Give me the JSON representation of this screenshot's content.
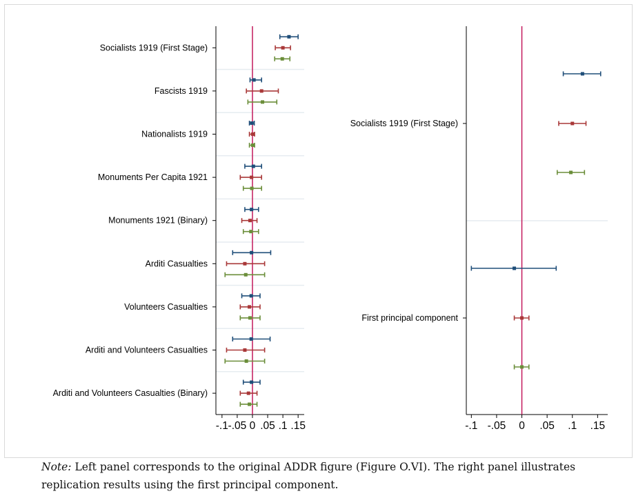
{
  "note": {
    "label": "Note:",
    "text": "Left panel corresponds to the original ADDR figure (Figure O.VI). The right panel illustrates replication results using the first principal component."
  },
  "colors": {
    "series_blue": "#1f4e79",
    "series_red": "#a93838",
    "series_green": "#6b8e3a",
    "zero_line": "#c2185b",
    "axis": "#000000",
    "separator": "#e6ecf0"
  },
  "chart_data": [
    {
      "type": "coefficient-plot",
      "categories": [
        "Socialists 1919 (First Stage)",
        "Fascists 1919",
        "Nationalists 1919",
        "Monuments Per Capita 1921",
        "Monuments 1921 (Binary)",
        "Arditi Casualties",
        "Volunteers Casualties",
        "Arditi and Volunteers Casualties",
        "Arditi and Volunteers Casualties (Binary)"
      ],
      "xlim": [
        -0.12,
        0.17
      ],
      "xticks": [
        "-.1",
        "-.05",
        "0",
        ".05",
        ".1",
        ".15"
      ],
      "xtick_values": [
        -0.1,
        -0.05,
        0,
        0.05,
        0.1,
        0.15
      ],
      "reference_line": 0,
      "series": [
        {
          "color": "#1f4e79",
          "estimates": [
            0.12,
            0.005,
            -0.002,
            0.003,
            -0.003,
            -0.003,
            -0.004,
            -0.004,
            -0.003
          ],
          "ci_low": [
            0.09,
            -0.008,
            -0.01,
            -0.025,
            -0.025,
            -0.065,
            -0.035,
            -0.065,
            -0.03
          ],
          "ci_high": [
            0.15,
            0.03,
            0.006,
            0.03,
            0.02,
            0.06,
            0.025,
            0.058,
            0.025
          ]
        },
        {
          "color": "#a93838",
          "estimates": [
            0.1,
            0.03,
            0.001,
            -0.003,
            -0.008,
            -0.025,
            -0.01,
            -0.025,
            -0.013
          ],
          "ci_low": [
            0.075,
            -0.02,
            -0.01,
            -0.04,
            -0.035,
            -0.085,
            -0.04,
            -0.085,
            -0.04
          ],
          "ci_high": [
            0.125,
            0.085,
            0.007,
            0.03,
            0.015,
            0.04,
            0.025,
            0.04,
            0.015
          ]
        },
        {
          "color": "#6b8e3a",
          "estimates": [
            0.098,
            0.033,
            0.001,
            -0.002,
            -0.005,
            -0.022,
            -0.008,
            -0.02,
            -0.01
          ],
          "ci_low": [
            0.073,
            -0.015,
            -0.01,
            -0.03,
            -0.03,
            -0.09,
            -0.04,
            -0.09,
            -0.04
          ],
          "ci_high": [
            0.123,
            0.08,
            0.007,
            0.03,
            0.02,
            0.04,
            0.025,
            0.04,
            0.015
          ]
        }
      ]
    },
    {
      "type": "coefficient-plot",
      "categories": [
        "Socialists 1919 (First Stage)",
        "First principal component"
      ],
      "xlim": [
        -0.11,
        0.17
      ],
      "xticks": [
        "-.1",
        "-.05",
        "0",
        ".05",
        ".1",
        ".15"
      ],
      "xtick_values": [
        -0.1,
        -0.05,
        0,
        0.05,
        0.1,
        0.15
      ],
      "reference_line": 0,
      "series": [
        {
          "color": "#1f4e79",
          "estimates": [
            0.12,
            -0.015
          ],
          "ci_low": [
            0.082,
            -0.1
          ],
          "ci_high": [
            0.156,
            0.068
          ]
        },
        {
          "color": "#a93838",
          "estimates": [
            0.1,
            0.0
          ],
          "ci_low": [
            0.073,
            -0.015
          ],
          "ci_high": [
            0.127,
            0.014
          ]
        },
        {
          "color": "#6b8e3a",
          "estimates": [
            0.097,
            0.0
          ],
          "ci_low": [
            0.07,
            -0.015
          ],
          "ci_high": [
            0.124,
            0.014
          ]
        }
      ]
    }
  ]
}
